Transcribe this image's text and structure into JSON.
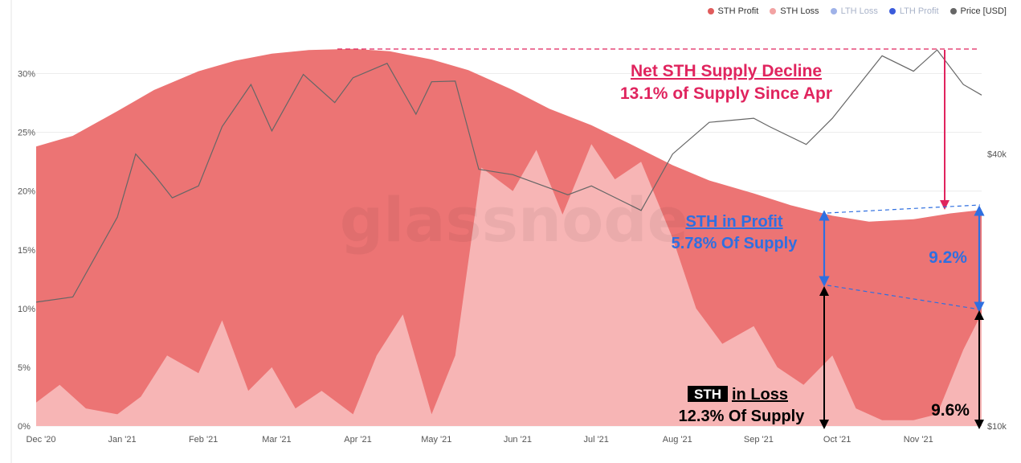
{
  "chart_data": {
    "type": "area",
    "watermark": "glassnode",
    "legend": [
      {
        "label": "STH Profit",
        "color": "#e05c5c",
        "dimmed": false
      },
      {
        "label": "STH Loss",
        "color": "#f2a3a3",
        "dimmed": false
      },
      {
        "label": "LTH Loss",
        "color": "#9fb2e8",
        "dimmed": true
      },
      {
        "label": "LTH Profit",
        "color": "#3b5bdb",
        "dimmed": true
      },
      {
        "label": "Price [USD]",
        "color": "#666666",
        "dimmed": false
      }
    ],
    "legend_position": "top-right",
    "x_tick_labels": [
      "Dec '20",
      "Jan '21",
      "Feb '21",
      "Mar '21",
      "Apr '21",
      "May '21",
      "Jun '21",
      "Jul '21",
      "Aug '21",
      "Sep '21",
      "Oct '21",
      "Nov '21"
    ],
    "x_range": [
      "2020-12-01",
      "2021-11-27"
    ],
    "y_left": {
      "ticks": [
        "0%",
        "5%",
        "10%",
        "15%",
        "20%",
        "25%",
        "30%"
      ],
      "ylim": [
        0,
        32.5
      ],
      "unit": "%"
    },
    "y_right": {
      "ticks": [
        "$10k",
        "$40k"
      ],
      "scale": "log",
      "ylim": [
        10000,
        70000
      ]
    },
    "grid": "horizontal",
    "series": [
      {
        "name": "STH Profit",
        "color": "#ec7474",
        "x": [
          "2020-12-01",
          "2020-12-15",
          "2021-01-01",
          "2021-01-15",
          "2021-02-01",
          "2021-02-15",
          "2021-03-01",
          "2021-03-15",
          "2021-04-01",
          "2021-04-15",
          "2021-05-01",
          "2021-05-15",
          "2021-06-01",
          "2021-06-15",
          "2021-07-01",
          "2021-07-15",
          "2021-08-01",
          "2021-08-15",
          "2021-09-01",
          "2021-09-15",
          "2021-10-01",
          "2021-10-15",
          "2021-11-01",
          "2021-11-15",
          "2021-11-27"
        ],
        "values": [
          23.8,
          24.7,
          26.8,
          28.6,
          30.2,
          31.1,
          31.7,
          32.0,
          32.1,
          31.9,
          31.2,
          30.3,
          28.6,
          27.0,
          25.6,
          24.1,
          22.2,
          20.9,
          19.8,
          18.8,
          17.9,
          17.4,
          17.6,
          18.1,
          18.4
        ]
      },
      {
        "name": "STH Loss",
        "color": "#f7b5b5",
        "x": [
          "2020-12-01",
          "2020-12-10",
          "2020-12-20",
          "2021-01-01",
          "2021-01-10",
          "2021-01-20",
          "2021-02-01",
          "2021-02-10",
          "2021-02-20",
          "2021-03-01",
          "2021-03-10",
          "2021-03-20",
          "2021-04-01",
          "2021-04-10",
          "2021-04-20",
          "2021-05-01",
          "2021-05-10",
          "2021-05-20",
          "2021-06-01",
          "2021-06-10",
          "2021-06-20",
          "2021-07-01",
          "2021-07-10",
          "2021-07-20",
          "2021-08-01",
          "2021-08-10",
          "2021-08-20",
          "2021-09-01",
          "2021-09-10",
          "2021-09-20",
          "2021-10-01",
          "2021-10-10",
          "2021-10-20",
          "2021-11-01",
          "2021-11-10",
          "2021-11-20",
          "2021-11-27"
        ],
        "values": [
          2.0,
          3.5,
          1.5,
          1.0,
          2.5,
          6.0,
          4.5,
          9.0,
          3.0,
          5.0,
          1.5,
          3.0,
          1.0,
          6.0,
          9.5,
          1.0,
          6.0,
          22.0,
          20.0,
          23.5,
          18.0,
          24.0,
          21.0,
          22.5,
          16.0,
          10.0,
          7.0,
          8.5,
          5.0,
          3.5,
          6.0,
          1.5,
          0.5,
          0.5,
          1.0,
          6.5,
          9.6
        ]
      },
      {
        "name": "Price [USD]",
        "color": "#666666",
        "axis": "right",
        "x": [
          "2020-12-01",
          "2020-12-15",
          "2021-01-01",
          "2021-01-08",
          "2021-01-15",
          "2021-01-22",
          "2021-02-01",
          "2021-02-10",
          "2021-02-21",
          "2021-03-01",
          "2021-03-13",
          "2021-03-25",
          "2021-04-01",
          "2021-04-14",
          "2021-04-25",
          "2021-05-01",
          "2021-05-10",
          "2021-05-19",
          "2021-06-01",
          "2021-06-22",
          "2021-07-01",
          "2021-07-20",
          "2021-08-01",
          "2021-08-15",
          "2021-09-01",
          "2021-09-07",
          "2021-09-21",
          "2021-10-01",
          "2021-10-20",
          "2021-11-01",
          "2021-11-10",
          "2021-11-20",
          "2021-11-27"
        ],
        "values": [
          18800,
          19300,
          29000,
          40000,
          36000,
          32000,
          34000,
          46000,
          57000,
          45000,
          60000,
          52000,
          59000,
          63500,
          49000,
          57800,
          58000,
          37000,
          36000,
          32500,
          34000,
          30000,
          40000,
          47000,
          48000,
          46000,
          42000,
          48000,
          66000,
          61000,
          68000,
          57000,
          54000
        ]
      }
    ],
    "annotations": {
      "net_decline_title": "Net STH Supply Decline",
      "net_decline_sub": "13.1% of Supply Since Apr",
      "profit_title": "STH in Profit",
      "profit_sub": "5.78% Of Supply",
      "profit_now": "9.2%",
      "loss_badge": "STH",
      "loss_title": "in Loss",
      "loss_sub": "12.3% Of Supply",
      "loss_now": "9.6%"
    },
    "colors": {
      "peak_line": "#e0245e",
      "profit_arrow": "#2f6fe0",
      "loss_arrow": "#000000"
    }
  }
}
